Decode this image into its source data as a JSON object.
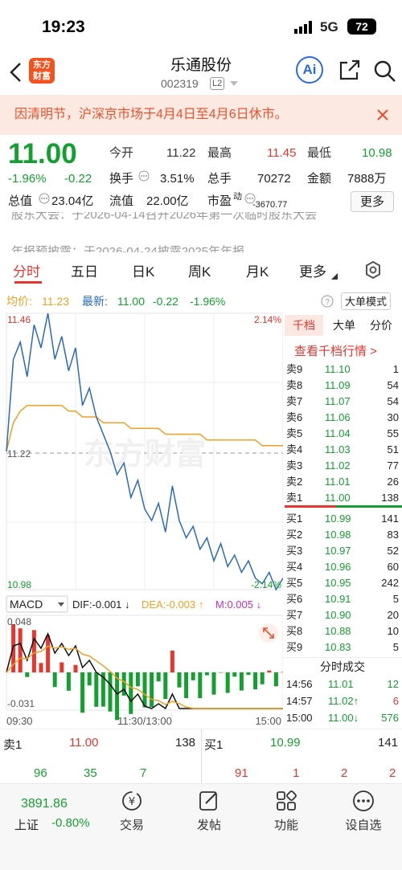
{
  "status": {
    "time": "19:23",
    "network": "5G",
    "battery": "72"
  },
  "header": {
    "stock_name": "乐通股份",
    "stock_code": "002319",
    "level": "L2",
    "logo_line1": "东方",
    "logo_line2": "财富",
    "ai_label": "Ai"
  },
  "notice": "因清明节，沪深京市场于4月4日至4月6日休市。",
  "quote": {
    "price": "11.00",
    "change_pct": "-1.96%",
    "change": "-0.22",
    "open_label": "今开",
    "open": "11.22",
    "high_label": "最高",
    "high": "11.45",
    "low_label": "最低",
    "low": "10.98",
    "turnover_label": "换手",
    "turnover": "3.51%",
    "volume_label": "总手",
    "volume": "70272",
    "amount_label": "金额",
    "amount": "7888万",
    "mcap_label": "总值",
    "mcap": "23.04亿",
    "float_label": "流值",
    "float_cap": "22.00亿",
    "pe_label": "市盈",
    "pe_sup": "动",
    "pe": "-3670.77",
    "more_label": "更多"
  },
  "news": {
    "item1": "股东大会：于2026-04-14召开2026年第一次临时股东大会",
    "item2": "年报预披露：于2026-04-24披露2025年年报"
  },
  "tabs": [
    "分时",
    "五日",
    "日K",
    "周K",
    "月K",
    "更多"
  ],
  "avgbar": {
    "avg_label": "均价:",
    "avg_value": "11.23",
    "latest_label": "最新:",
    "latest_value": "11.00",
    "change": "-0.22",
    "change_pct": "-1.96%",
    "big_order": "大单模式"
  },
  "chart": {
    "price_high": "11.46",
    "price_low": "10.98",
    "pct_high": "2.14%",
    "pct_low": "-2.14%",
    "pre_close": "11.22",
    "watermark": "东方财富",
    "time_start": "09:30",
    "time_mid": "11:30/13:00",
    "time_end": "15:00",
    "macd_label": "MACD",
    "dif": "DIF:-0.001 ↓",
    "dea": "DEA:-0.003 ↑",
    "m": "M:0.005 ↓",
    "macd_high": "0.048",
    "macd_low": "-0.031"
  },
  "depth": {
    "tabs": [
      "千档",
      "大单",
      "分价"
    ],
    "view_more": "查看千档行情 >",
    "asks": [
      {
        "label": "卖9",
        "price": "11.10",
        "vol": "1"
      },
      {
        "label": "卖8",
        "price": "11.09",
        "vol": "54"
      },
      {
        "label": "卖7",
        "price": "11.07",
        "vol": "54"
      },
      {
        "label": "卖6",
        "price": "11.06",
        "vol": "30"
      },
      {
        "label": "卖5",
        "price": "11.04",
        "vol": "55"
      },
      {
        "label": "卖4",
        "price": "11.03",
        "vol": "51"
      },
      {
        "label": "卖3",
        "price": "11.02",
        "vol": "77"
      },
      {
        "label": "卖2",
        "price": "11.01",
        "vol": "26"
      },
      {
        "label": "卖1",
        "price": "11.00",
        "vol": "138"
      }
    ],
    "bids": [
      {
        "label": "买1",
        "price": "10.99",
        "vol": "141"
      },
      {
        "label": "买2",
        "price": "10.98",
        "vol": "83"
      },
      {
        "label": "买3",
        "price": "10.97",
        "vol": "52"
      },
      {
        "label": "买4",
        "price": "10.96",
        "vol": "60"
      },
      {
        "label": "买5",
        "price": "10.95",
        "vol": "242"
      },
      {
        "label": "买6",
        "price": "10.91",
        "vol": "5"
      },
      {
        "label": "买7",
        "price": "10.90",
        "vol": "20"
      },
      {
        "label": "买8",
        "price": "10.88",
        "vol": "10"
      },
      {
        "label": "买9",
        "price": "10.83",
        "vol": "5"
      }
    ],
    "trades_title": "分时成交",
    "trades": [
      {
        "time": "14:56",
        "price": "11.01",
        "vol": "12"
      },
      {
        "time": "14:57",
        "price": "11.02↑",
        "vol": "6"
      },
      {
        "time": "15:00",
        "price": "11.00↓",
        "vol": "576"
      }
    ]
  },
  "bidask": {
    "ask_label": "卖1",
    "ask_price": "11.00",
    "ask_vol": "138",
    "bid_label": "买1",
    "bid_price": "10.99",
    "bid_vol": "141",
    "ask_queue": [
      "96",
      "35",
      "7"
    ],
    "bid_queue": [
      "91",
      "1",
      "2",
      "2"
    ]
  },
  "bottomnav": {
    "index_value": "3891.86",
    "index_name": "上证",
    "index_change": "-0.80%",
    "items": [
      "交易",
      "发帖",
      "功能",
      "设自选"
    ]
  },
  "chart_data": {
    "type": "line",
    "x_range": [
      "09:30",
      "15:00"
    ],
    "ylim": [
      10.98,
      11.46
    ],
    "pre_close": 11.22,
    "series": [
      {
        "values": [
          11.22,
          11.38,
          11.41,
          11.35,
          11.44,
          11.4,
          11.46,
          11.38,
          11.42,
          11.36,
          11.4,
          11.3,
          11.33,
          11.28,
          11.25,
          11.22,
          11.18,
          11.2,
          11.14,
          11.17,
          11.12,
          11.1,
          11.13,
          11.08,
          11.16,
          11.1,
          11.07,
          11.09,
          11.05,
          11.07,
          11.03,
          11.06,
          11.02,
          11.04,
          11.01,
          11.03,
          11.0,
          10.99,
          11.01,
          10.98,
          11.0
        ]
      },
      {
        "values": [
          11.22,
          11.27,
          11.29,
          11.3,
          11.3,
          11.3,
          11.3,
          11.3,
          11.3,
          11.29,
          11.29,
          11.28,
          11.28,
          11.28,
          11.27,
          11.27,
          11.27,
          11.27,
          11.26,
          11.26,
          11.26,
          11.26,
          11.26,
          11.25,
          11.25,
          11.25,
          11.25,
          11.25,
          11.25,
          11.24,
          11.24,
          11.24,
          11.24,
          11.24,
          11.24,
          11.24,
          11.24,
          11.23,
          11.23,
          11.23,
          11.23
        ]
      }
    ]
  }
}
